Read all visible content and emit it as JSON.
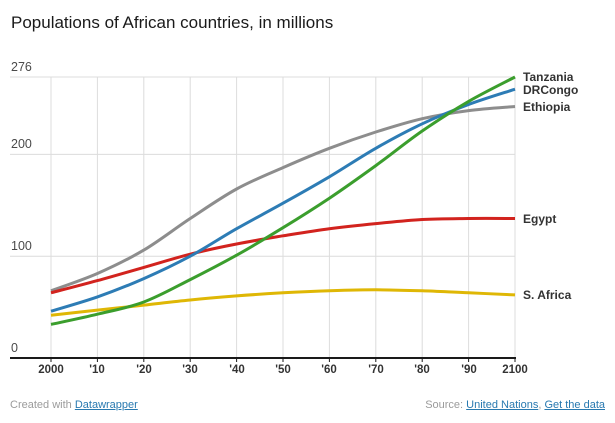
{
  "chart_data": {
    "type": "line",
    "title": "Populations of African countries, in millions",
    "unit": "millions",
    "source": "United Nations",
    "x": [
      2000,
      2010,
      2020,
      2030,
      2040,
      2050,
      2060,
      2070,
      2080,
      2090,
      2100
    ],
    "x_tick_labels": [
      "2000",
      "'10",
      "'20",
      "'30",
      "'40",
      "'50",
      "'60",
      "'70",
      "'80",
      "'90",
      "2100"
    ],
    "y_ticks": [
      0,
      100,
      200,
      276
    ],
    "y_tick_labels": [
      "0",
      "100",
      "200",
      "276"
    ],
    "xlim": [
      2000,
      2100
    ],
    "ylim": [
      0,
      276
    ],
    "grid": true,
    "legend_position": "right-of-line-ends",
    "series": [
      {
        "name": "Tanzania",
        "color": "#3B9E2D",
        "values": [
          33,
          43,
          55,
          77,
          101,
          128,
          157,
          189,
          223,
          252,
          276
        ]
      },
      {
        "name": "DRCongo",
        "color": "#2D7CB5",
        "values": [
          46,
          60,
          78,
          100,
          127,
          152,
          178,
          206,
          230,
          249,
          264
        ]
      },
      {
        "name": "Ethiopia",
        "color": "#8D8D8D",
        "values": [
          66,
          83,
          106,
          137,
          166,
          187,
          206,
          222,
          235,
          243,
          247
        ]
      },
      {
        "name": "Egypt",
        "color": "#D2231E",
        "values": [
          64,
          76,
          89,
          102,
          112,
          120,
          127,
          132,
          136,
          137,
          137
        ]
      },
      {
        "name": "S. Africa",
        "color": "#DFB705",
        "values": [
          42,
          47,
          52,
          57,
          61,
          64,
          66,
          67,
          66,
          64,
          62
        ]
      }
    ]
  },
  "footer": {
    "created_with": "Created with",
    "datawrapper_link": "Datawrapper",
    "source_label": "Source:",
    "source_link": "United Nations",
    "separator": ", ",
    "get_data_link": "Get the data"
  },
  "style_colors": {
    "gridline": "#dcdcdc",
    "axis": "#1a1a1a",
    "link": "#2879b0",
    "tick_label": "#333333",
    "title": "#1a1a1a"
  }
}
